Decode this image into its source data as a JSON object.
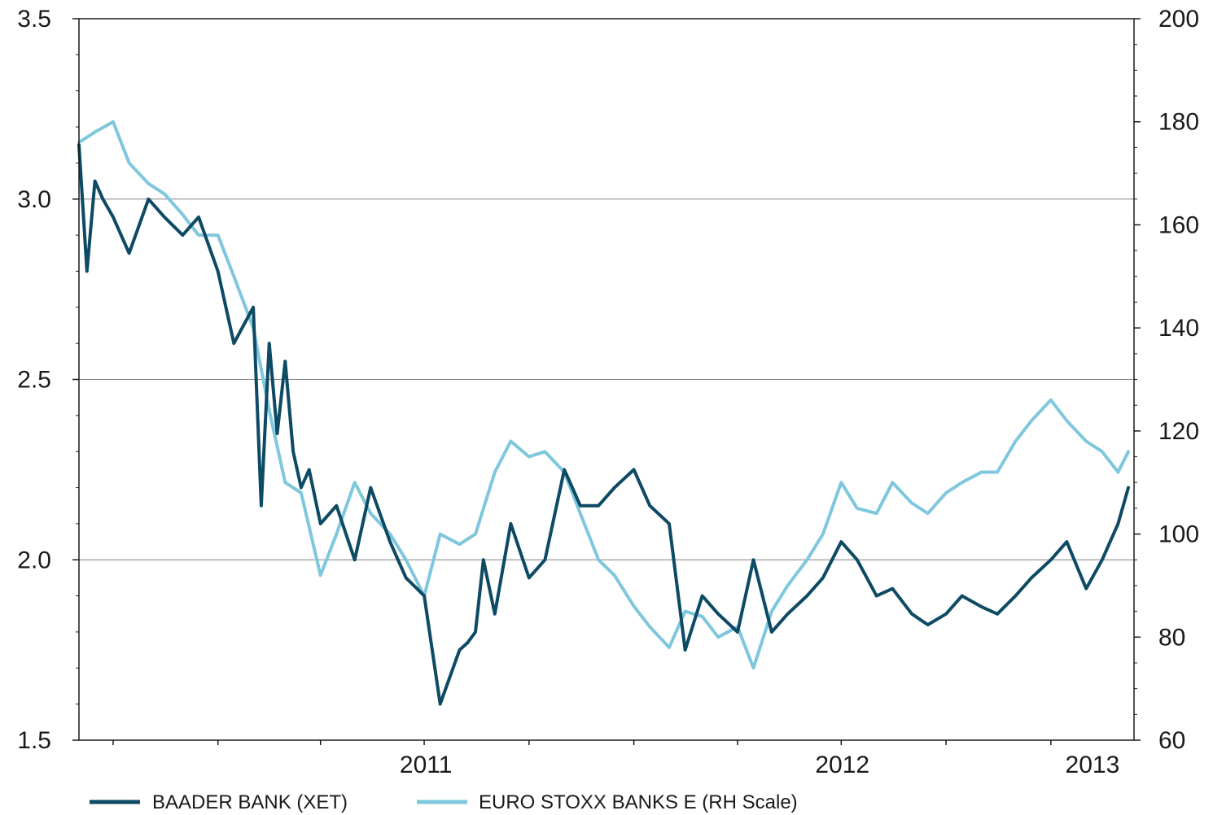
{
  "chart_data": {
    "type": "line",
    "x_range": [
      "2010-09-01",
      "2013-03-15"
    ],
    "x_tick_labels": [
      {
        "label": "2011",
        "date": "2011-01-01"
      },
      {
        "label": "2012",
        "date": "2012-01-01"
      },
      {
        "label": "2013",
        "date": "2013-01-01"
      }
    ],
    "x_minor_ticks": [
      "2010-10-01",
      "2011-01-01",
      "2011-04-01",
      "2011-07-01",
      "2011-10-01",
      "2012-01-01",
      "2012-04-01",
      "2012-07-01",
      "2012-10-01",
      "2013-01-01"
    ],
    "left_axis": {
      "ylim": [
        1.5,
        3.5
      ],
      "ticks": [
        1.5,
        2.0,
        2.5,
        3.0,
        3.5
      ],
      "tick_labels": [
        "1.5",
        "2.0",
        "2.5",
        "3.0",
        "3.5"
      ]
    },
    "right_axis": {
      "ylim": [
        60,
        200
      ],
      "ticks": [
        60,
        80,
        100,
        120,
        140,
        160,
        180,
        200
      ],
      "tick_labels": [
        "60",
        "80",
        "100",
        "120",
        "140",
        "160",
        "180",
        "200"
      ]
    },
    "grid": {
      "horizontal": [
        2.0,
        2.5,
        3.0
      ],
      "vertical": false
    },
    "legend_position": "bottom-left",
    "colors": {
      "baader": "#0d4a63",
      "eurostoxx": "#7fc7dd",
      "grid": "#808080",
      "axis": "#1a1a1a"
    },
    "series": [
      {
        "name": "BAADER BANK (XET)",
        "axis": "left",
        "color": "#0d4a63",
        "x": [
          "2010-09-01",
          "2010-09-08",
          "2010-09-15",
          "2010-09-22",
          "2010-10-01",
          "2010-10-15",
          "2010-11-01",
          "2010-11-15",
          "2010-12-01",
          "2010-12-15",
          "2011-01-01",
          "2011-01-15",
          "2011-02-01",
          "2011-02-08",
          "2011-02-15",
          "2011-02-22",
          "2011-03-01",
          "2011-03-08",
          "2011-03-15",
          "2011-03-22",
          "2011-04-01",
          "2011-04-15",
          "2011-05-01",
          "2011-05-15",
          "2011-06-01",
          "2011-06-15",
          "2011-07-01",
          "2011-07-15",
          "2011-08-01",
          "2011-08-08",
          "2011-08-15",
          "2011-08-22",
          "2011-09-01",
          "2011-09-15",
          "2011-10-01",
          "2011-10-15",
          "2011-11-01",
          "2011-11-15",
          "2011-12-01",
          "2011-12-15",
          "2012-01-01",
          "2012-01-15",
          "2012-02-01",
          "2012-02-15",
          "2012-03-01",
          "2012-03-15",
          "2012-04-01",
          "2012-04-15",
          "2012-05-01",
          "2012-05-15",
          "2012-06-01",
          "2012-06-15",
          "2012-07-01",
          "2012-07-15",
          "2012-08-01",
          "2012-08-15",
          "2012-09-01",
          "2012-09-15",
          "2012-10-01",
          "2012-10-15",
          "2012-11-01",
          "2012-11-15",
          "2012-12-01",
          "2012-12-15",
          "2013-01-01",
          "2013-01-15",
          "2013-02-01",
          "2013-02-15",
          "2013-03-01",
          "2013-03-10"
        ],
        "values": [
          3.15,
          2.8,
          3.05,
          3.0,
          2.95,
          2.85,
          3.0,
          2.95,
          2.9,
          2.95,
          2.8,
          2.6,
          2.7,
          2.15,
          2.6,
          2.35,
          2.55,
          2.3,
          2.2,
          2.25,
          2.1,
          2.15,
          2.0,
          2.2,
          2.05,
          1.95,
          1.9,
          1.6,
          1.75,
          1.77,
          1.8,
          2.0,
          1.85,
          2.1,
          1.95,
          2.0,
          2.25,
          2.15,
          2.15,
          2.2,
          2.25,
          2.15,
          2.1,
          1.75,
          1.9,
          1.85,
          1.8,
          2.0,
          1.8,
          1.85,
          1.9,
          1.95,
          2.05,
          2.0,
          1.9,
          1.92,
          1.85,
          1.82,
          1.85,
          1.9,
          1.87,
          1.85,
          1.9,
          1.95,
          2.0,
          2.05,
          1.92,
          2.0,
          2.1,
          2.2
        ]
      },
      {
        "name": "EURO STOXX BANKS E (RH Scale)",
        "axis": "right",
        "color": "#7fc7dd",
        "x": [
          "2010-09-01",
          "2010-09-15",
          "2010-10-01",
          "2010-10-15",
          "2010-11-01",
          "2010-11-15",
          "2010-12-01",
          "2010-12-15",
          "2011-01-01",
          "2011-01-15",
          "2011-02-01",
          "2011-02-15",
          "2011-03-01",
          "2011-03-15",
          "2011-04-01",
          "2011-04-15",
          "2011-05-01",
          "2011-05-15",
          "2011-06-01",
          "2011-06-15",
          "2011-07-01",
          "2011-07-15",
          "2011-08-01",
          "2011-08-15",
          "2011-09-01",
          "2011-09-15",
          "2011-10-01",
          "2011-10-15",
          "2011-11-01",
          "2011-11-15",
          "2011-12-01",
          "2011-12-15",
          "2012-01-01",
          "2012-01-15",
          "2012-02-01",
          "2012-02-15",
          "2012-03-01",
          "2012-03-15",
          "2012-04-01",
          "2012-04-15",
          "2012-05-01",
          "2012-05-15",
          "2012-06-01",
          "2012-06-15",
          "2012-07-01",
          "2012-07-15",
          "2012-08-01",
          "2012-08-15",
          "2012-09-01",
          "2012-09-15",
          "2012-10-01",
          "2012-10-15",
          "2012-11-01",
          "2012-11-15",
          "2012-12-01",
          "2012-12-15",
          "2013-01-01",
          "2013-01-15",
          "2013-02-01",
          "2013-02-15",
          "2013-03-01",
          "2013-03-10"
        ],
        "values": [
          176,
          178,
          180,
          172,
          168,
          166,
          162,
          158,
          158,
          150,
          140,
          124,
          110,
          108,
          92,
          100,
          110,
          104,
          100,
          95,
          88,
          100,
          98,
          100,
          112,
          118,
          115,
          116,
          112,
          104,
          95,
          92,
          86,
          82,
          78,
          85,
          84,
          80,
          82,
          74,
          85,
          90,
          95,
          100,
          110,
          105,
          104,
          110,
          106,
          104,
          108,
          110,
          112,
          112,
          118,
          122,
          126,
          122,
          118,
          116,
          112,
          116
        ]
      }
    ]
  }
}
